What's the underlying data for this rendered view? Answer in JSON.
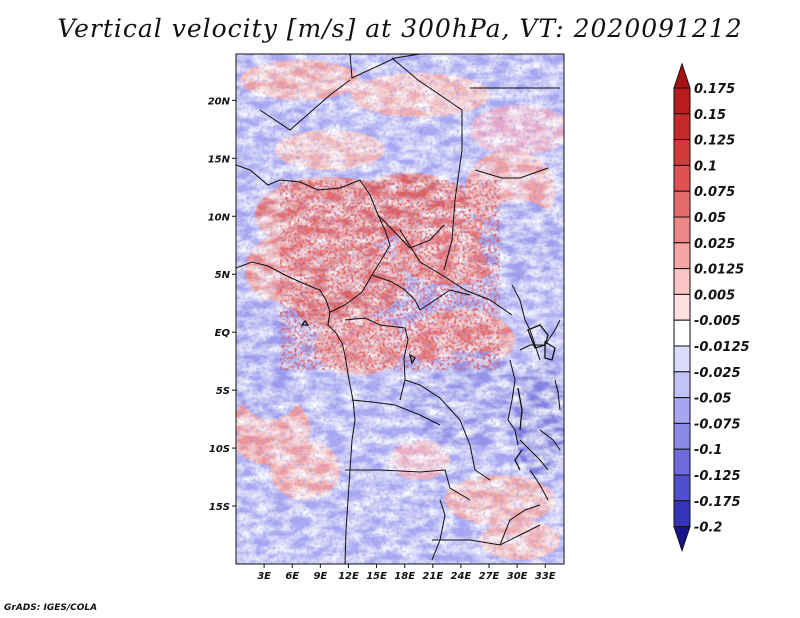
{
  "title": "Vertical velocity [m/s] at 300hPa, VT: 2020091212",
  "footer": "GrADS: IGES/COLA",
  "map": {
    "lon_range": [
      0,
      35
    ],
    "lat_range": [
      -20,
      24
    ],
    "lat_ticks": [
      {
        "value": 20,
        "label": "20N"
      },
      {
        "value": 15,
        "label": "15N"
      },
      {
        "value": 10,
        "label": "10N"
      },
      {
        "value": 5,
        "label": "5N"
      },
      {
        "value": 0,
        "label": "EQ"
      },
      {
        "value": -5,
        "label": "5S"
      },
      {
        "value": -10,
        "label": "10S"
      },
      {
        "value": -15,
        "label": "15S"
      }
    ],
    "lon_ticks": [
      {
        "value": 3,
        "label": "3E"
      },
      {
        "value": 6,
        "label": "6E"
      },
      {
        "value": 9,
        "label": "9E"
      },
      {
        "value": 12,
        "label": "12E"
      },
      {
        "value": 15,
        "label": "15E"
      },
      {
        "value": 18,
        "label": "18E"
      },
      {
        "value": 21,
        "label": "21E"
      },
      {
        "value": 24,
        "label": "24E"
      },
      {
        "value": 27,
        "label": "27E"
      },
      {
        "value": 30,
        "label": "30E"
      },
      {
        "value": 33,
        "label": "33E"
      }
    ]
  },
  "colorbar": {
    "levels": [
      {
        "label": "0.175",
        "color": "#b81c1c"
      },
      {
        "label": "0.15",
        "color": "#c52a2a"
      },
      {
        "label": "0.125",
        "color": "#d23b3b"
      },
      {
        "label": "0.1",
        "color": "#de5252"
      },
      {
        "label": "0.075",
        "color": "#e66b6b"
      },
      {
        "label": "0.05",
        "color": "#ee8888"
      },
      {
        "label": "0.025",
        "color": "#f4a5a5"
      },
      {
        "label": "0.0125",
        "color": "#f9c4c4"
      },
      {
        "label": "0.005",
        "color": "#fde0e0"
      },
      {
        "label": "-0.005",
        "color": "#ffffff"
      },
      {
        "label": "-0.0125",
        "color": "#dcdcfc"
      },
      {
        "label": "-0.025",
        "color": "#c2c2f7"
      },
      {
        "label": "-0.05",
        "color": "#a6a6f0"
      },
      {
        "label": "-0.075",
        "color": "#8a8ae8"
      },
      {
        "label": "-0.1",
        "color": "#6c6cdc"
      },
      {
        "label": "-0.125",
        "color": "#5050cc"
      },
      {
        "label": "-0.175",
        "color": "#3535b8"
      },
      {
        "label": "-0.2",
        "color": "#2020a0"
      }
    ],
    "top_arrow_color": "#a81212",
    "bottom_arrow_color": "#18148a"
  }
}
